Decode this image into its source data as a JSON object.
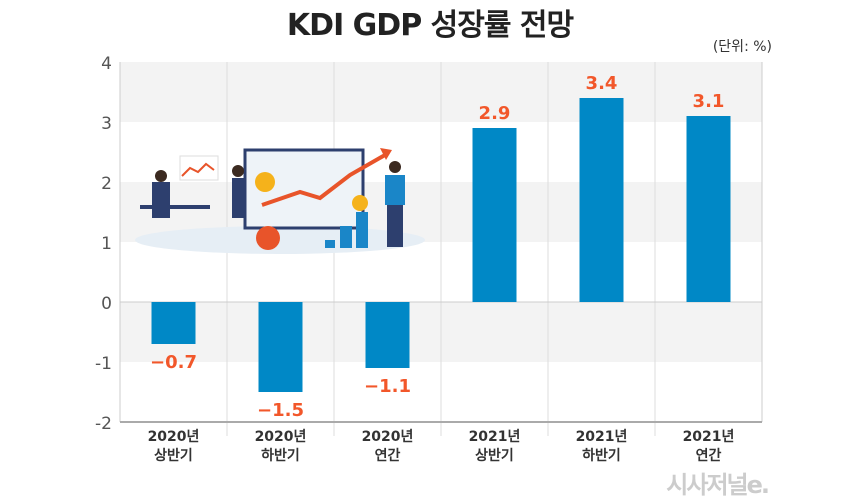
{
  "title": "KDI GDP 성장률 전망",
  "unit": "(단위: %)",
  "logo_text": "시사저널e.",
  "chart_data": {
    "type": "bar",
    "title": "KDI GDP 성장률 전망",
    "categories": [
      [
        "2020년",
        "상반기"
      ],
      [
        "2020년",
        "하반기"
      ],
      [
        "2020년",
        "연간"
      ],
      [
        "2021년",
        "상반기"
      ],
      [
        "2021년",
        "하반기"
      ],
      [
        "2021년",
        "연간"
      ]
    ],
    "values": [
      -0.7,
      -1.5,
      -1.1,
      2.9,
      3.4,
      3.1
    ],
    "value_labels": [
      "−0.7",
      "−1.5",
      "−1.1",
      "2.9",
      "3.4",
      "3.1"
    ],
    "ylim": [
      -2,
      4
    ],
    "yticks": [
      "4",
      "3",
      "2",
      "1",
      "0",
      "-1",
      "-2"
    ],
    "bar_color": "#0088c6",
    "label_color": "#f2572a",
    "grid": true
  }
}
